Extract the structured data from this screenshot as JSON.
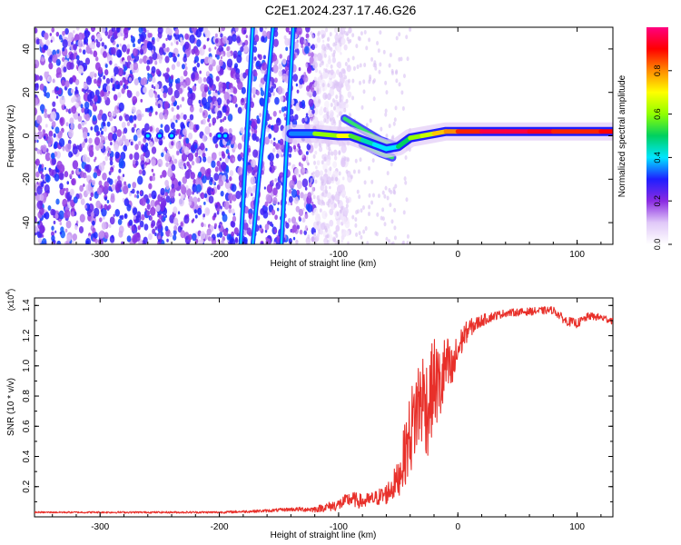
{
  "title": "C2E1.2024.237.17.46.G26",
  "colorbar": {
    "label": "Normalized spectral amplitude",
    "ticks": [
      "0.0",
      "0.2",
      "0.4",
      "0.6",
      "0.8"
    ],
    "tick_values": [
      0.0,
      0.2,
      0.4,
      0.6,
      0.8
    ],
    "range": [
      0,
      1
    ],
    "colors": [
      "#ffffff",
      "#e0c8f8",
      "#8a2be2",
      "#1e1eff",
      "#00e5ff",
      "#00d060",
      "#90ff00",
      "#ffff00",
      "#ff8c00",
      "#ff0000",
      "#ff0080"
    ]
  },
  "chart_data": [
    {
      "type": "heatmap",
      "xlabel": "Height of straight line (km)",
      "ylabel": "Frequency (Hz)",
      "xlim": [
        -355,
        130
      ],
      "ylim": [
        -50,
        50
      ],
      "xticks": [
        -300,
        -200,
        -100,
        0,
        100
      ],
      "xtick_labels": [
        "-300",
        "-200",
        "-100",
        "0",
        "100"
      ],
      "yticks": [
        -40,
        -20,
        0,
        20,
        40
      ],
      "ytick_labels": [
        "-40",
        "-20",
        "0",
        "20",
        "40"
      ],
      "noise_region_x": [
        -355,
        -120
      ],
      "diagonal_streaks": [
        {
          "x_start": -182,
          "y_start": -50,
          "x_end": -172,
          "y_end": 50
        },
        {
          "x_start": -172,
          "y_start": -50,
          "x_end": -155,
          "y_end": 50
        },
        {
          "x_start": -148,
          "y_start": -50,
          "x_end": -138,
          "y_end": 50
        }
      ],
      "main_trace": {
        "x": [
          -140,
          -120,
          -100,
          -90,
          -80,
          -70,
          -60,
          -50,
          -40,
          -30,
          -20,
          -10,
          0,
          20,
          40,
          60,
          80,
          100,
          120,
          130
        ],
        "y": [
          1,
          1,
          0,
          0,
          -2,
          -4,
          -6,
          -5,
          -1,
          0,
          1,
          2,
          2,
          2,
          2,
          2,
          2,
          2,
          2,
          2
        ],
        "amplitude": [
          0.3,
          0.4,
          0.8,
          0.6,
          0.5,
          0.4,
          0.4,
          0.4,
          0.6,
          0.6,
          0.7,
          0.8,
          0.8,
          0.95,
          0.95,
          0.95,
          0.9,
          0.85,
          0.9,
          0.9
        ]
      },
      "secondary_traces": [
        {
          "x": [
            -95,
            -80,
            -65,
            -50
          ],
          "y": [
            8,
            3,
            -2,
            -5
          ]
        },
        {
          "x": [
            -80,
            -65,
            -55
          ],
          "y": [
            -4,
            -8,
            -10
          ]
        }
      ],
      "scattered_blobs": [
        {
          "x": -260,
          "y": 0
        },
        {
          "x": -250,
          "y": 0
        },
        {
          "x": -240,
          "y": 0
        },
        {
          "x": -200,
          "y": 0
        },
        {
          "x": -195,
          "y": 0
        }
      ]
    },
    {
      "type": "line",
      "xlabel": "Height of straight line (km)",
      "ylabel": "SNR (10 * v/v)",
      "scale_label": "(x10",
      "scale_exp": "4",
      "multiplier": 10000,
      "xlim": [
        -355,
        130
      ],
      "ylim": [
        0,
        1.45
      ],
      "xticks": [
        -300,
        -200,
        -100,
        0,
        100
      ],
      "xtick_labels": [
        "-300",
        "-200",
        "-100",
        "0",
        "100"
      ],
      "yticks": [
        0.2,
        0.4,
        0.6,
        0.8,
        1.0,
        1.2,
        1.4
      ],
      "ytick_labels": [
        "0.2",
        "0.4",
        "0.6",
        "0.8",
        "1.0",
        "1.2",
        "1.4"
      ],
      "color": "#e8302a",
      "series": [
        {
          "x": [
            -355,
            -300,
            -250,
            -200,
            -160,
            -140,
            -120,
            -100,
            -90,
            -80,
            -70,
            -60,
            -50,
            -45,
            -40,
            -35,
            -30,
            -25,
            -20,
            -15,
            -10,
            -5,
            0,
            5,
            10,
            20,
            30,
            40,
            60,
            80,
            90,
            100,
            110,
            120,
            130
          ],
          "y": [
            0.03,
            0.03,
            0.03,
            0.03,
            0.04,
            0.05,
            0.05,
            0.08,
            0.12,
            0.1,
            0.12,
            0.15,
            0.25,
            0.4,
            0.55,
            0.7,
            0.8,
            0.72,
            0.9,
            0.85,
            1.0,
            0.95,
            1.1,
            1.2,
            1.25,
            1.3,
            1.33,
            1.35,
            1.36,
            1.37,
            1.3,
            1.28,
            1.33,
            1.32,
            1.3
          ],
          "noise": [
            0.005,
            0.006,
            0.006,
            0.007,
            0.01,
            0.012,
            0.02,
            0.04,
            0.05,
            0.05,
            0.05,
            0.07,
            0.12,
            0.2,
            0.28,
            0.32,
            0.35,
            0.33,
            0.3,
            0.28,
            0.22,
            0.18,
            0.12,
            0.08,
            0.06,
            0.04,
            0.03,
            0.025,
            0.025,
            0.025,
            0.03,
            0.03,
            0.025,
            0.025,
            0.025
          ]
        }
      ]
    }
  ]
}
